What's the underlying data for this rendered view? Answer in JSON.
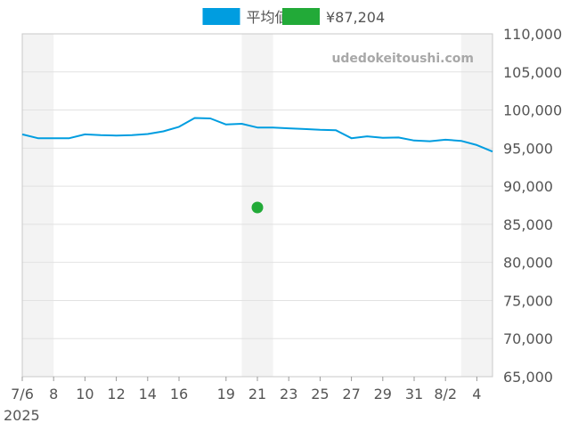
{
  "chart_data": {
    "type": "line",
    "legend": {
      "placement": "top-center",
      "entries": [
        {
          "label": "平均値",
          "color": "#009de0"
        },
        {
          "label": "¥87,204",
          "color": "#22aa38"
        }
      ]
    },
    "watermark": "udedokeitoushi.com",
    "year_label": "2025",
    "x_tick_labels": [
      "7/6",
      "8",
      "10",
      "12",
      "14",
      "16",
      "19",
      "21",
      "23",
      "25",
      "27",
      "29",
      "31",
      "8/2",
      "4"
    ],
    "x_tick_dates": [
      "2025-07-06",
      "2025-07-08",
      "2025-07-10",
      "2025-07-12",
      "2025-07-14",
      "2025-07-16",
      "2025-07-19",
      "2025-07-21",
      "2025-07-23",
      "2025-07-25",
      "2025-07-27",
      "2025-07-29",
      "2025-07-31",
      "2025-08-02",
      "2025-08-04"
    ],
    "y_tick_labels": [
      "110,000",
      "105,000",
      "100,000",
      "95,000",
      "90,000",
      "85,000",
      "80,000",
      "75,000",
      "70,000",
      "65,000"
    ],
    "ylim": [
      65000,
      110000
    ],
    "xlim": [
      "2025-07-06",
      "2025-08-05"
    ],
    "grid": true,
    "series": [
      {
        "name": "平均値",
        "color": "#009de0",
        "x": [
          "2025-07-06",
          "2025-07-07",
          "2025-07-08",
          "2025-07-09",
          "2025-07-10",
          "2025-07-11",
          "2025-07-12",
          "2025-07-13",
          "2025-07-14",
          "2025-07-15",
          "2025-07-16",
          "2025-07-17",
          "2025-07-18",
          "2025-07-19",
          "2025-07-20",
          "2025-07-21",
          "2025-07-22",
          "2025-07-23",
          "2025-07-24",
          "2025-07-25",
          "2025-07-26",
          "2025-07-27",
          "2025-07-28",
          "2025-07-29",
          "2025-07-30",
          "2025-07-31",
          "2025-08-01",
          "2025-08-02",
          "2025-08-03",
          "2025-08-04",
          "2025-08-05"
        ],
        "values": [
          96800,
          96300,
          96300,
          96300,
          96800,
          96700,
          96650,
          96700,
          96850,
          97200,
          97800,
          98950,
          98900,
          98100,
          98200,
          97700,
          97700,
          97600,
          97500,
          97400,
          97350,
          96300,
          96550,
          96350,
          96400,
          96000,
          95900,
          96100,
          95950,
          95400,
          94550
        ]
      },
      {
        "name": "¥87,204",
        "color": "#22aa38",
        "type": "scatter",
        "x": [
          "2025-07-21"
        ],
        "values": [
          87204
        ]
      }
    ]
  }
}
